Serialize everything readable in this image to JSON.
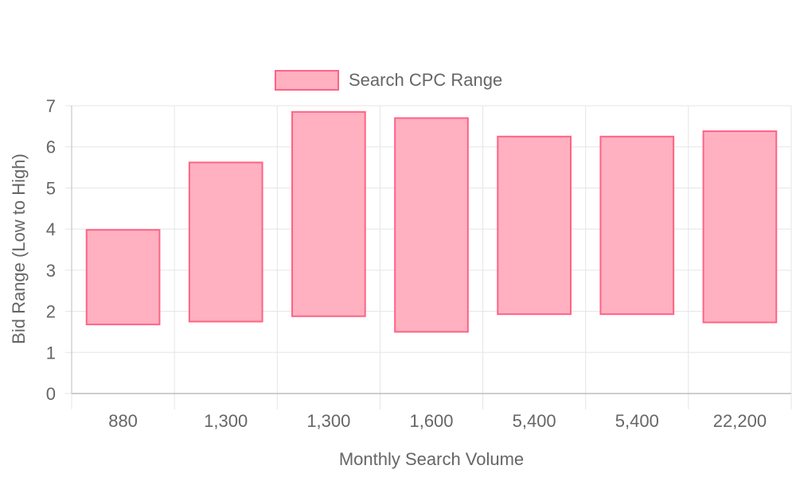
{
  "chart_data": {
    "type": "bar",
    "subtype": "floating-range",
    "title": "",
    "xlabel": "Monthly Search Volume",
    "ylabel": "Bid Range (Low to High)",
    "categories": [
      "880",
      "1,300",
      "1,300",
      "1,600",
      "5,400",
      "5,400",
      "22,200"
    ],
    "series": [
      {
        "name": "Search CPC Range",
        "low": [
          1.68,
          1.75,
          1.88,
          1.5,
          1.93,
          1.93,
          1.73
        ],
        "high": [
          3.98,
          5.62,
          6.85,
          6.7,
          6.25,
          6.25,
          6.38
        ]
      }
    ],
    "ylim": [
      0,
      7
    ],
    "yticks": [
      "0",
      "1",
      "2",
      "3",
      "4",
      "5",
      "6",
      "7"
    ],
    "grid": true,
    "legend_position": "top",
    "colors": {
      "bar_fill": "#ffb1c1",
      "bar_border": "#ff6384",
      "grid": "#e5e5e5",
      "axis": "#bdbdbd"
    }
  }
}
